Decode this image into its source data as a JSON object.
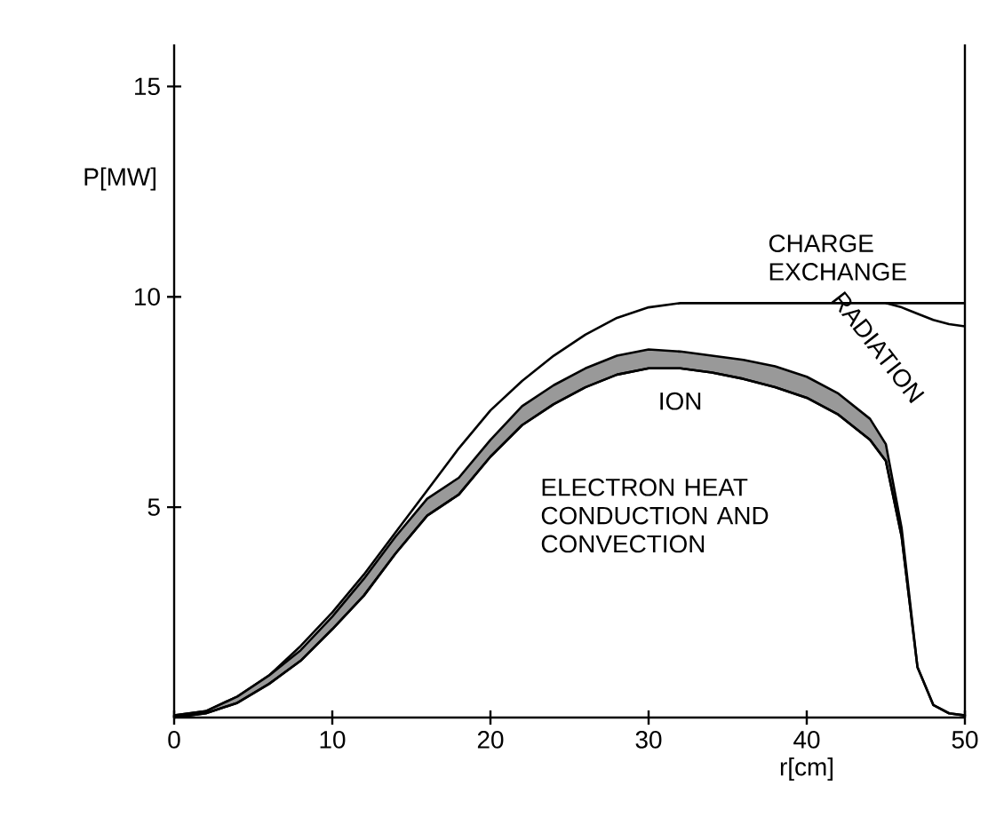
{
  "chart_data": {
    "type": "line",
    "xlabel": "r[cm]",
    "ylabel": "P[MW]",
    "x": [
      0,
      2,
      4,
      6,
      8,
      10,
      12,
      14,
      16,
      18,
      20,
      22,
      24,
      26,
      28,
      30,
      32,
      34,
      36,
      38,
      40,
      42,
      44,
      45,
      46,
      47,
      48,
      49,
      50
    ],
    "series": [
      {
        "color": "#000000",
        "values": [
          0.05,
          0.15,
          0.5,
          1.0,
          1.7,
          2.5,
          3.4,
          4.4,
          5.4,
          6.4,
          7.3,
          8.0,
          8.6,
          9.1,
          9.5,
          9.75,
          9.85,
          9.85,
          9.85,
          9.85,
          9.85,
          9.85,
          9.85,
          9.85,
          9.85,
          9.85,
          9.85,
          9.85,
          9.85
        ]
      },
      {
        "color": "#000000",
        "x": [
          45,
          46,
          47,
          48,
          49,
          50
        ],
        "values": [
          9.85,
          9.75,
          9.6,
          9.45,
          9.35,
          9.3
        ]
      },
      {
        "color": "#000000",
        "values": [
          0,
          0.1,
          0.35,
          0.8,
          1.35,
          2.1,
          2.9,
          3.9,
          4.8,
          5.3,
          6.2,
          6.95,
          7.45,
          7.85,
          8.15,
          8.3,
          8.3,
          8.2,
          8.05,
          7.85,
          7.6,
          7.2,
          6.6,
          6.1,
          4.3,
          1.2,
          0.3,
          0.1,
          0.05
        ],
        "lower": [
          0,
          0.1,
          0.35,
          0.8,
          1.35,
          2.1,
          2.9,
          3.9,
          4.8,
          5.3,
          6.2,
          6.95,
          7.45,
          7.85,
          8.15,
          8.3,
          8.3,
          8.2,
          8.05,
          7.85,
          7.6,
          7.2,
          6.6,
          6.1,
          4.3,
          1.2,
          0.3,
          0.1,
          0.05
        ],
        "upper": [
          0.05,
          0.15,
          0.5,
          1.0,
          1.6,
          2.4,
          3.3,
          4.3,
          5.2,
          5.7,
          6.6,
          7.4,
          7.9,
          8.3,
          8.6,
          8.75,
          8.7,
          8.6,
          8.5,
          8.35,
          8.1,
          7.7,
          7.1,
          6.5,
          4.5,
          1.2,
          0.3,
          0.1,
          0.05
        ]
      }
    ],
    "annotations": [
      "CHARGE EXCHANGE",
      "ION",
      "RADIATION",
      "ELECTRON HEAT CONDUCTION AND CONVECTION"
    ],
    "xlim": [
      0,
      50
    ],
    "ylim": [
      0,
      16
    ],
    "xticks": [
      0,
      10,
      20,
      30,
      40,
      50
    ],
    "yticks": [
      5,
      10,
      15
    ],
    "marker": "none",
    "line_style": "solid",
    "grid": false
  }
}
